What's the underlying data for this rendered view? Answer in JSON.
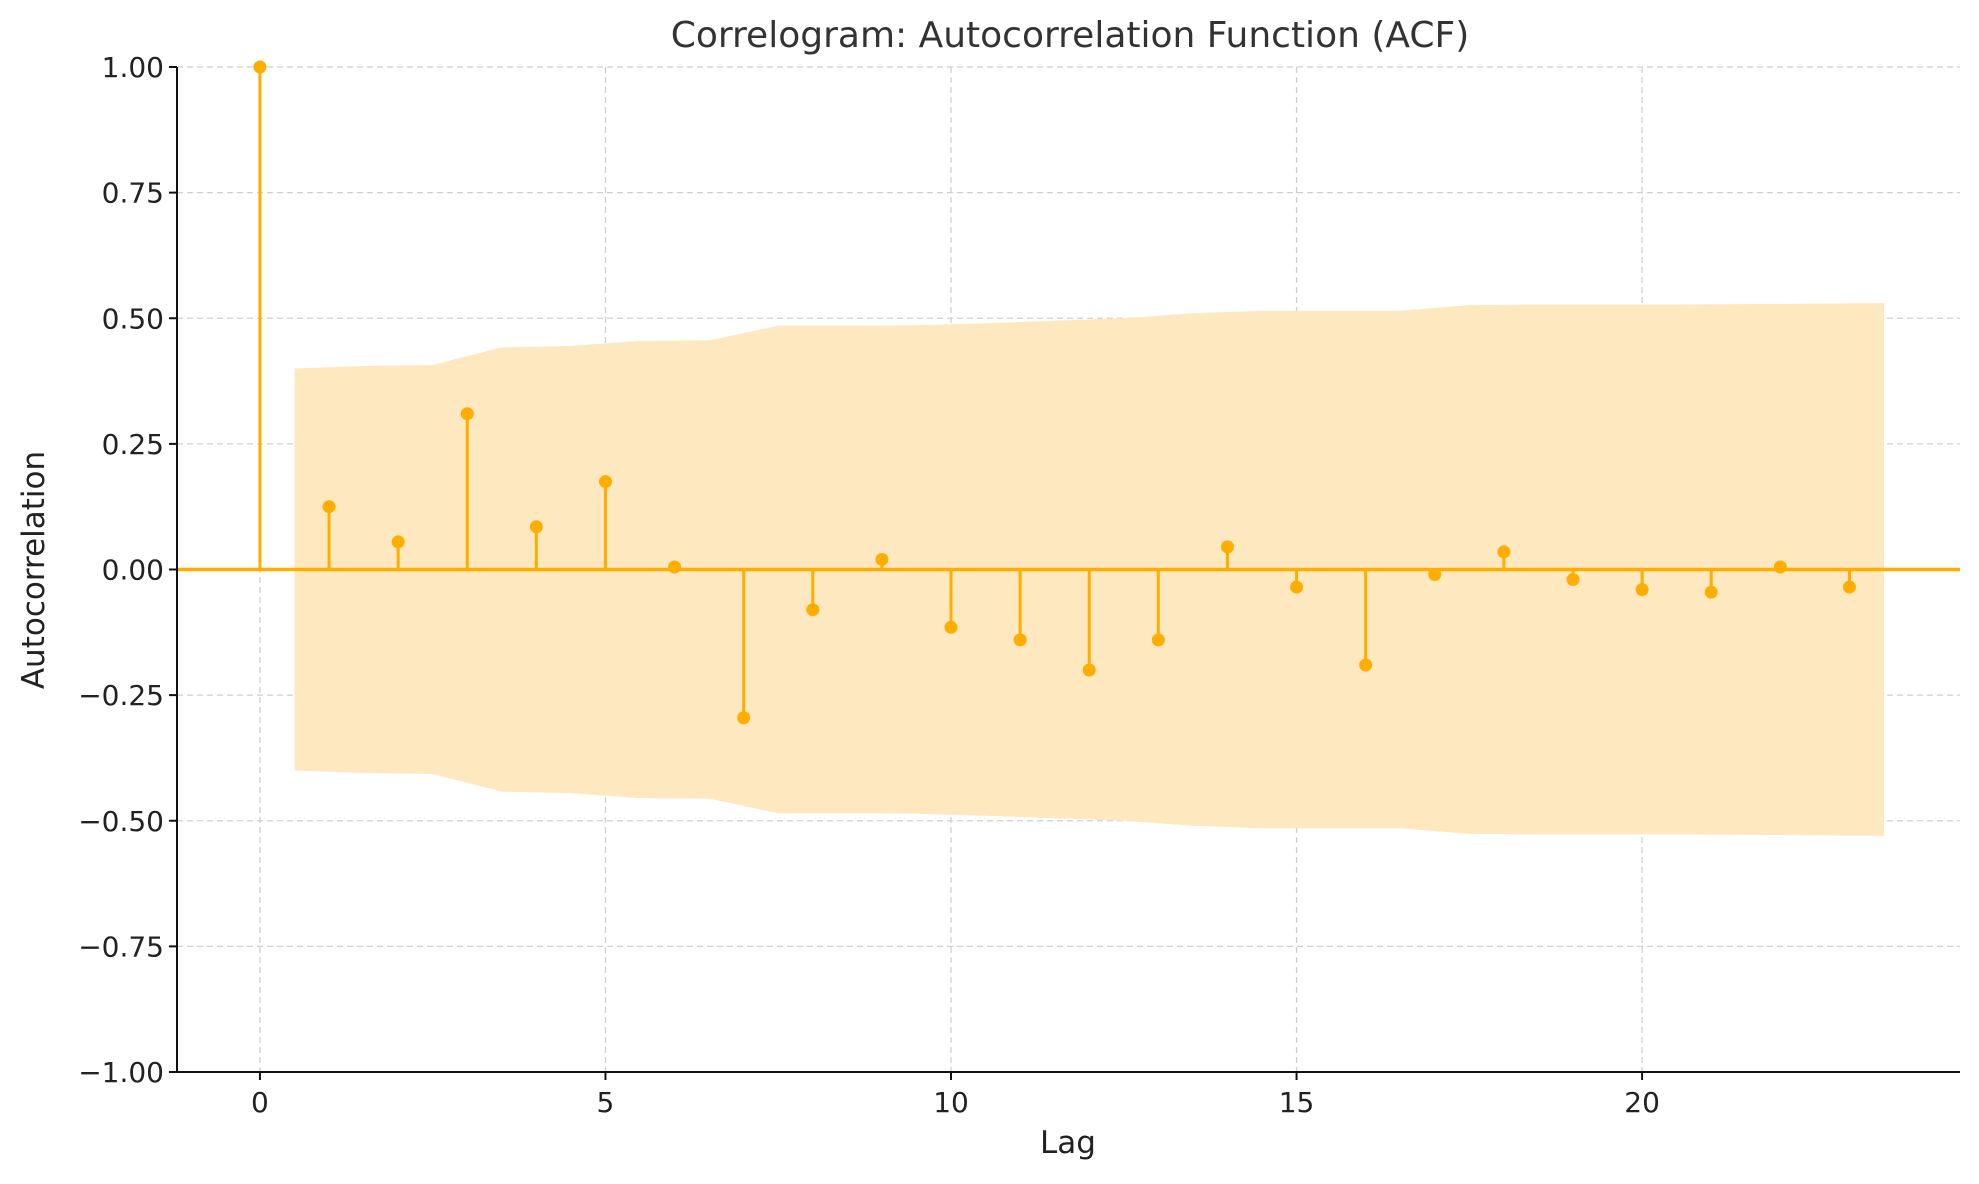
{
  "chart_data": {
    "type": "stem",
    "title": "Correlogram: Autocorrelation Function (ACF)",
    "xlabel": "Lag",
    "ylabel": "Autocorrelation",
    "xlim": [
      -1.2,
      24.6
    ],
    "ylim": [
      -1.0,
      1.0
    ],
    "xticks": [
      0,
      5,
      10,
      15,
      20
    ],
    "xtick_labels": [
      "0",
      "5",
      "10",
      "15",
      "20"
    ],
    "yticks": [
      1.0,
      0.75,
      0.5,
      0.25,
      0.0,
      -0.25,
      -0.5,
      -0.75,
      -1.0
    ],
    "ytick_labels": [
      "1.00",
      "0.75",
      "0.50",
      "0.25",
      "0.00",
      "−0.25",
      "−0.50",
      "−0.75",
      "−1.00"
    ],
    "grid": true,
    "color": "#FFAE00",
    "band_color": "#FDE8C0",
    "lags": [
      0,
      1,
      2,
      3,
      4,
      5,
      6,
      7,
      8,
      9,
      10,
      11,
      12,
      13,
      14,
      15,
      16,
      17,
      18,
      19,
      20,
      21,
      22,
      23
    ],
    "acf": [
      1.0,
      0.125,
      0.055,
      0.31,
      0.085,
      0.175,
      0.005,
      -0.295,
      -0.08,
      0.02,
      -0.115,
      -0.14,
      -0.2,
      -0.14,
      0.045,
      -0.035,
      -0.19,
      -0.01,
      0.035,
      -0.02,
      -0.04,
      -0.045,
      0.005,
      -0.035
    ],
    "confidence_band": {
      "x": [
        0.5,
        1.5,
        2.5,
        3.5,
        4.5,
        5.5,
        6.5,
        7.5,
        8.5,
        9.5,
        10.5,
        11.5,
        12.5,
        13.5,
        14.5,
        15.5,
        16.5,
        17.5,
        18.5,
        19.5,
        20.5,
        21.5,
        22.5,
        23.5
      ],
      "upper": [
        0.4,
        0.405,
        0.407,
        0.442,
        0.445,
        0.455,
        0.456,
        0.485,
        0.485,
        0.486,
        0.49,
        0.495,
        0.5,
        0.51,
        0.515,
        0.515,
        0.515,
        0.526,
        0.527,
        0.527,
        0.527,
        0.528,
        0.529,
        0.53
      ],
      "lower": [
        -0.4,
        -0.405,
        -0.407,
        -0.442,
        -0.445,
        -0.455,
        -0.456,
        -0.485,
        -0.485,
        -0.486,
        -0.49,
        -0.495,
        -0.5,
        -0.51,
        -0.515,
        -0.515,
        -0.515,
        -0.526,
        -0.527,
        -0.527,
        -0.527,
        -0.528,
        -0.529,
        -0.53
      ]
    }
  }
}
